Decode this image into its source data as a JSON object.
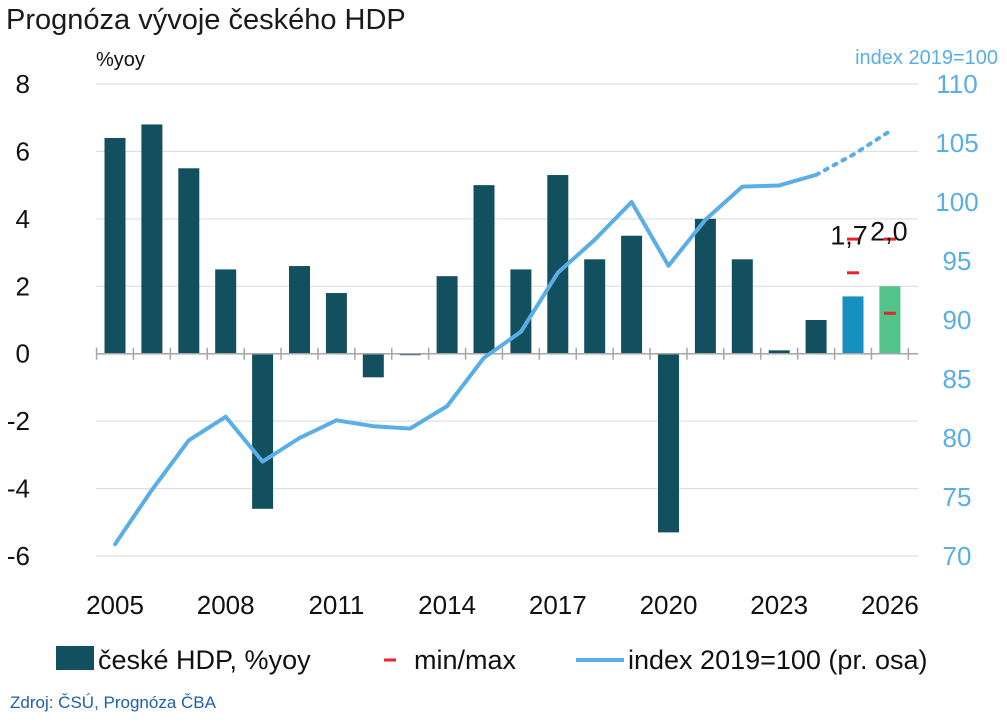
{
  "chart_data": {
    "type": "bar",
    "title": "Prognóza vývoje českého HDP",
    "ylabel_left": "%yoy",
    "ylabel_right": "index 2019=100",
    "ylim_left": [
      -6,
      8
    ],
    "ylim_right": [
      70,
      110
    ],
    "yticks_left": [
      8,
      6,
      4,
      2,
      0,
      -2,
      -4,
      -6
    ],
    "yticks_right": [
      110,
      105,
      100,
      95,
      90,
      85,
      80,
      75,
      70
    ],
    "xticks": [
      "2005",
      "2008",
      "2011",
      "2014",
      "2017",
      "2020",
      "2023",
      "2026"
    ],
    "x": [
      2005,
      2006,
      2007,
      2008,
      2009,
      2010,
      2011,
      2012,
      2013,
      2014,
      2015,
      2016,
      2017,
      2018,
      2019,
      2020,
      2021,
      2022,
      2023,
      2024,
      2025,
      2026
    ],
    "series": [
      {
        "name": "české HDP, %yoy",
        "type": "bar",
        "axis": "left",
        "color": "#12505f",
        "forecast_colors": {
          "2025": "#1690c0",
          "2026": "#52c48b"
        },
        "values": [
          6.4,
          6.8,
          5.5,
          2.5,
          -4.6,
          2.6,
          1.8,
          -0.7,
          0.0,
          2.3,
          5.0,
          2.5,
          5.3,
          2.8,
          3.5,
          -5.3,
          4.0,
          2.8,
          0.1,
          1.0,
          1.7,
          2.0
        ]
      },
      {
        "name": "min/max",
        "type": "marker",
        "axis": "left",
        "color": "#e8232a",
        "points": [
          {
            "x": 2025,
            "min": 2.4,
            "max": 3.4
          },
          {
            "x": 2026,
            "min": 1.2,
            "max": 3.4
          }
        ]
      },
      {
        "name": "index 2019=100 (pr. osa)",
        "type": "line",
        "axis": "right",
        "color": "#5aaee6",
        "x": [
          2005,
          2006,
          2007,
          2008,
          2009,
          2010,
          2011,
          2012,
          2013,
          2014,
          2015,
          2016,
          2017,
          2018,
          2019,
          2020,
          2021,
          2022,
          2023,
          2024,
          2025,
          2026
        ],
        "values": [
          71.0,
          75.6,
          79.8,
          81.8,
          78.0,
          80.0,
          81.5,
          81.0,
          80.8,
          82.7,
          86.8,
          89.0,
          94.0,
          96.8,
          100.0,
          94.6,
          98.5,
          101.3,
          101.4,
          102.3,
          104.0,
          106.0
        ],
        "forecast_from": 2024
      }
    ],
    "data_labels": [
      {
        "x": 2025,
        "text": "1,7"
      },
      {
        "x": 2026,
        "text": "2,0"
      }
    ],
    "legend": {
      "position": "bottom",
      "items": [
        {
          "label": "české HDP, %yoy",
          "symbol": "bar",
          "color": "#12505f"
        },
        {
          "label": "min/max",
          "symbol": "dash",
          "color": "#e8232a"
        },
        {
          "label": "index 2019=100 (pr. osa)",
          "symbol": "line",
          "color": "#5aaee6"
        }
      ]
    },
    "grid": "horizontal",
    "source": "Zdroj: ČSÚ, Prognóza ČBA"
  }
}
